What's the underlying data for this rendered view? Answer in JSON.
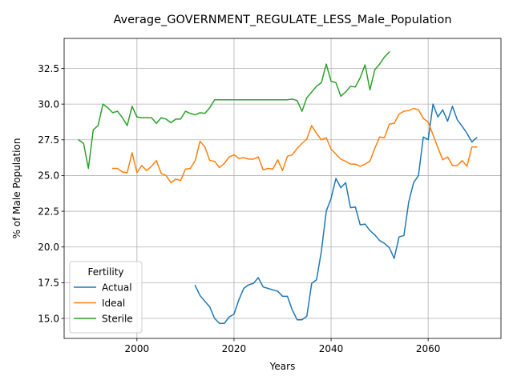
{
  "chart_data": {
    "type": "line",
    "title": "Average_GOVERNMENT_REGULATE_LESS_Male_Population",
    "xlabel": "Years",
    "ylabel": "% of Male Population",
    "xlim": [
      1985,
      2075
    ],
    "ylim": [
      13.6,
      34.6
    ],
    "xticks": [
      2000,
      2020,
      2040,
      2060
    ],
    "yticks": [
      15.0,
      17.5,
      20.0,
      22.5,
      25.0,
      27.5,
      30.0,
      32.5
    ],
    "grid": true,
    "legend": {
      "title": "Fertility",
      "placement": "lower-left"
    },
    "series": [
      {
        "name": "Actual",
        "color": "#1f77b4",
        "x": [
          2012,
          2013,
          2014,
          2015,
          2016,
          2017,
          2018,
          2019,
          2020,
          2021,
          2022,
          2023,
          2024,
          2025,
          2026,
          2027,
          2028,
          2029,
          2030,
          2031,
          2032,
          2033,
          2034,
          2035,
          2036,
          2037,
          2038,
          2039,
          2040,
          2041,
          2042,
          2043,
          2044,
          2045,
          2046,
          2047,
          2048,
          2049,
          2050,
          2051,
          2052,
          2053,
          2054,
          2055,
          2056,
          2057,
          2058,
          2059,
          2060,
          2061,
          2062,
          2063,
          2064,
          2065,
          2066,
          2067,
          2068,
          2069,
          2070
        ],
        "y": [
          17.3,
          16.6,
          16.2,
          15.8,
          15.0,
          14.65,
          14.65,
          15.1,
          15.3,
          16.3,
          17.1,
          17.35,
          17.45,
          17.85,
          17.2,
          17.1,
          17.0,
          16.9,
          16.55,
          16.55,
          15.6,
          14.9,
          14.9,
          15.15,
          17.45,
          17.7,
          19.7,
          22.5,
          23.4,
          24.8,
          24.15,
          24.5,
          22.75,
          22.8,
          21.55,
          21.6,
          21.15,
          20.85,
          20.45,
          20.25,
          19.95,
          19.2,
          20.7,
          20.8,
          23.15,
          24.5,
          25.0,
          27.7,
          27.5,
          30.0,
          29.1,
          29.6,
          28.8,
          29.85,
          28.9,
          28.45,
          27.95,
          27.35,
          27.65
        ]
      },
      {
        "name": "Ideal",
        "color": "#ff7f0e",
        "x": [
          1995,
          1996,
          1997,
          1998,
          1999,
          2000,
          2001,
          2002,
          2003,
          2004,
          2005,
          2006,
          2007,
          2008,
          2009,
          2010,
          2011,
          2012,
          2013,
          2014,
          2015,
          2016,
          2017,
          2018,
          2019,
          2020,
          2021,
          2022,
          2023,
          2024,
          2025,
          2026,
          2027,
          2028,
          2029,
          2030,
          2031,
          2032,
          2033,
          2034,
          2035,
          2036,
          2037,
          2038,
          2039,
          2040,
          2041,
          2042,
          2043,
          2044,
          2045,
          2046,
          2047,
          2048,
          2049,
          2050,
          2051,
          2052,
          2053,
          2054,
          2055,
          2056,
          2057,
          2058,
          2059,
          2060,
          2061,
          2062,
          2063,
          2064,
          2065,
          2066,
          2067,
          2068,
          2069,
          2070
        ],
        "y": [
          25.5,
          25.5,
          25.25,
          25.2,
          26.6,
          25.2,
          25.7,
          25.35,
          25.65,
          26.05,
          25.15,
          25.0,
          24.5,
          24.75,
          24.65,
          25.45,
          25.5,
          26.05,
          27.4,
          27.0,
          26.05,
          26.0,
          25.55,
          25.85,
          26.3,
          26.45,
          26.2,
          26.25,
          26.15,
          26.15,
          26.3,
          25.4,
          25.5,
          25.45,
          26.1,
          25.35,
          26.35,
          26.45,
          26.9,
          27.25,
          27.55,
          28.5,
          27.95,
          27.5,
          27.65,
          26.85,
          26.5,
          26.15,
          26.0,
          25.8,
          25.8,
          25.65,
          25.8,
          26.0,
          26.9,
          27.7,
          27.65,
          28.6,
          28.65,
          29.3,
          29.5,
          29.55,
          29.7,
          29.6,
          29.0,
          28.75,
          27.85,
          26.95,
          26.1,
          26.3,
          25.7,
          25.7,
          26.05,
          25.65,
          27.0,
          27.0
        ]
      },
      {
        "name": "Sterile",
        "color": "#2ca02c",
        "x": [
          1988,
          1989,
          1990,
          1991,
          1992,
          1993,
          1994,
          1995,
          1996,
          1997,
          1998,
          1999,
          2000,
          2001,
          2002,
          2003,
          2004,
          2005,
          2006,
          2007,
          2008,
          2009,
          2010,
          2011,
          2012,
          2013,
          2014,
          2015,
          2016,
          2017,
          2018,
          2019,
          2020,
          2021,
          2022,
          2023,
          2024,
          2025,
          2026,
          2027,
          2028,
          2029,
          2030,
          2031,
          2032,
          2033,
          2034,
          2035,
          2036,
          2037,
          2038,
          2039,
          2040,
          2041,
          2042,
          2043,
          2044,
          2045,
          2046,
          2047,
          2048,
          2049,
          2050,
          2051,
          2052
        ],
        "y": [
          27.5,
          27.25,
          25.5,
          28.2,
          28.5,
          30.0,
          29.75,
          29.4,
          29.5,
          29.05,
          28.5,
          29.85,
          29.1,
          29.05,
          29.05,
          29.05,
          28.65,
          29.05,
          28.95,
          28.7,
          28.95,
          28.95,
          29.5,
          29.35,
          29.25,
          29.4,
          29.35,
          29.75,
          30.3,
          30.3,
          30.3,
          30.3,
          30.3,
          30.3,
          30.3,
          30.3,
          30.3,
          30.3,
          30.3,
          30.3,
          30.3,
          30.3,
          30.3,
          30.3,
          30.35,
          30.25,
          29.5,
          30.45,
          30.85,
          31.25,
          31.5,
          32.8,
          31.6,
          31.5,
          30.55,
          30.85,
          31.25,
          31.2,
          31.85,
          32.75,
          31.0,
          32.4,
          32.8,
          33.3,
          33.65
        ]
      }
    ]
  }
}
